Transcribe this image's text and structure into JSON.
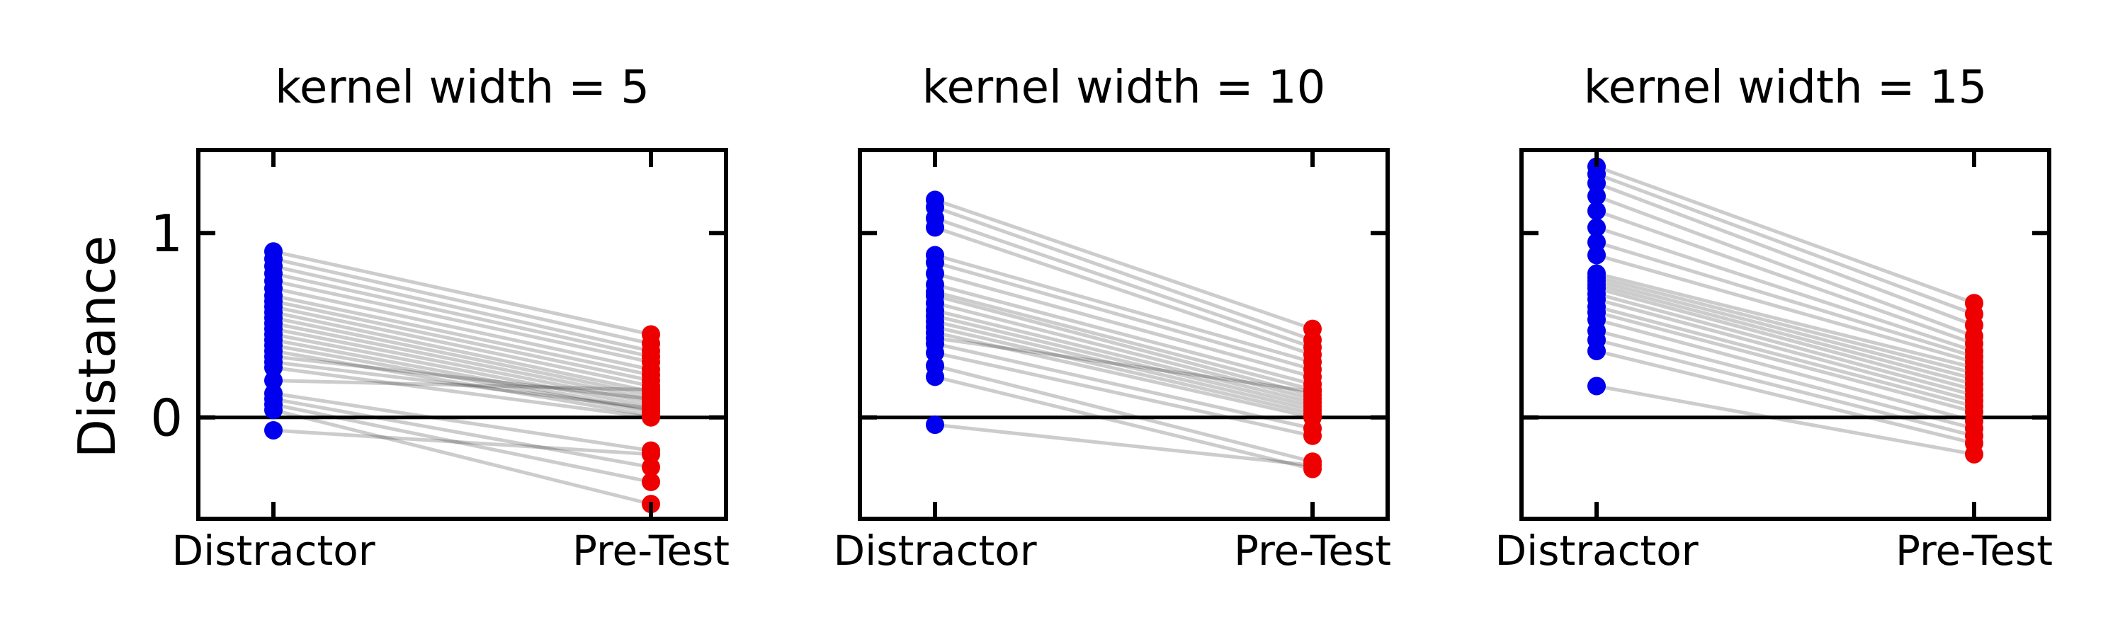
{
  "chart_data": [
    {
      "type": "scatter",
      "title": "kernel width = 5",
      "categories": [
        "Distractor",
        "Pre-Test"
      ],
      "ylabel": "Distance",
      "yticks": [
        0,
        1
      ],
      "ylim": [
        -0.55,
        1.45
      ],
      "hline": 0,
      "colors": {
        "Distractor": "#0000ee",
        "Pre-Test": "#ee0000",
        "lines": "#000000"
      },
      "pairs": [
        [
          0.9,
          0.45
        ],
        [
          0.86,
          0.4
        ],
        [
          0.82,
          0.36
        ],
        [
          0.78,
          0.33
        ],
        [
          0.74,
          0.3
        ],
        [
          0.7,
          0.26
        ],
        [
          0.66,
          0.23
        ],
        [
          0.63,
          0.2
        ],
        [
          0.6,
          0.17
        ],
        [
          0.57,
          0.14
        ],
        [
          0.54,
          0.12
        ],
        [
          0.51,
          0.1
        ],
        [
          0.48,
          0.08
        ],
        [
          0.45,
          0.06
        ],
        [
          0.42,
          0.04
        ],
        [
          0.39,
          0.03
        ],
        [
          0.36,
          0.01
        ],
        [
          0.33,
          0.1
        ],
        [
          0.3,
          0.05
        ],
        [
          0.27,
          0.0
        ],
        [
          0.2,
          0.15
        ],
        [
          0.13,
          -0.18
        ],
        [
          0.1,
          -0.27
        ],
        [
          0.07,
          -0.35
        ],
        [
          0.04,
          -0.47
        ],
        [
          -0.07,
          -0.2
        ]
      ]
    },
    {
      "type": "scatter",
      "title": "kernel width = 10",
      "categories": [
        "Distractor",
        "Pre-Test"
      ],
      "ylabel": "",
      "yticks": [
        0,
        1
      ],
      "ylim": [
        -0.55,
        1.45
      ],
      "hline": 0,
      "colors": {
        "Distractor": "#0000ee",
        "Pre-Test": "#ee0000",
        "lines": "#000000"
      },
      "pairs": [
        [
          1.18,
          0.48
        ],
        [
          1.14,
          0.42
        ],
        [
          1.08,
          0.38
        ],
        [
          1.03,
          0.34
        ],
        [
          0.88,
          0.3
        ],
        [
          0.84,
          0.26
        ],
        [
          0.78,
          0.22
        ],
        [
          0.72,
          0.18
        ],
        [
          0.68,
          0.15
        ],
        [
          0.66,
          0.12
        ],
        [
          0.62,
          0.1
        ],
        [
          0.58,
          0.08
        ],
        [
          0.55,
          0.06
        ],
        [
          0.52,
          0.04
        ],
        [
          0.49,
          0.02
        ],
        [
          0.46,
          0.0
        ],
        [
          0.43,
          0.14
        ],
        [
          0.4,
          -0.06
        ],
        [
          0.35,
          -0.1
        ],
        [
          0.28,
          -0.24
        ],
        [
          0.22,
          -0.28
        ],
        [
          -0.04,
          -0.26
        ]
      ]
    },
    {
      "type": "scatter",
      "title": "kernel width = 15",
      "categories": [
        "Distractor",
        "Pre-Test"
      ],
      "ylabel": "",
      "yticks": [
        0,
        1
      ],
      "ylim": [
        -0.55,
        1.45
      ],
      "hline": 0,
      "colors": {
        "Distractor": "#0000ee",
        "Pre-Test": "#ee0000",
        "lines": "#000000"
      },
      "pairs": [
        [
          1.36,
          0.62
        ],
        [
          1.32,
          0.56
        ],
        [
          1.27,
          0.5
        ],
        [
          1.2,
          0.44
        ],
        [
          1.12,
          0.4
        ],
        [
          1.03,
          0.36
        ],
        [
          0.95,
          0.33
        ],
        [
          0.88,
          0.3
        ],
        [
          0.78,
          0.27
        ],
        [
          0.76,
          0.24
        ],
        [
          0.74,
          0.21
        ],
        [
          0.72,
          0.18
        ],
        [
          0.7,
          0.15
        ],
        [
          0.67,
          0.12
        ],
        [
          0.64,
          0.09
        ],
        [
          0.6,
          0.06
        ],
        [
          0.57,
          0.03
        ],
        [
          0.53,
          -0.02
        ],
        [
          0.47,
          -0.06
        ],
        [
          0.42,
          -0.1
        ],
        [
          0.36,
          -0.14
        ],
        [
          0.17,
          -0.2
        ]
      ]
    }
  ]
}
